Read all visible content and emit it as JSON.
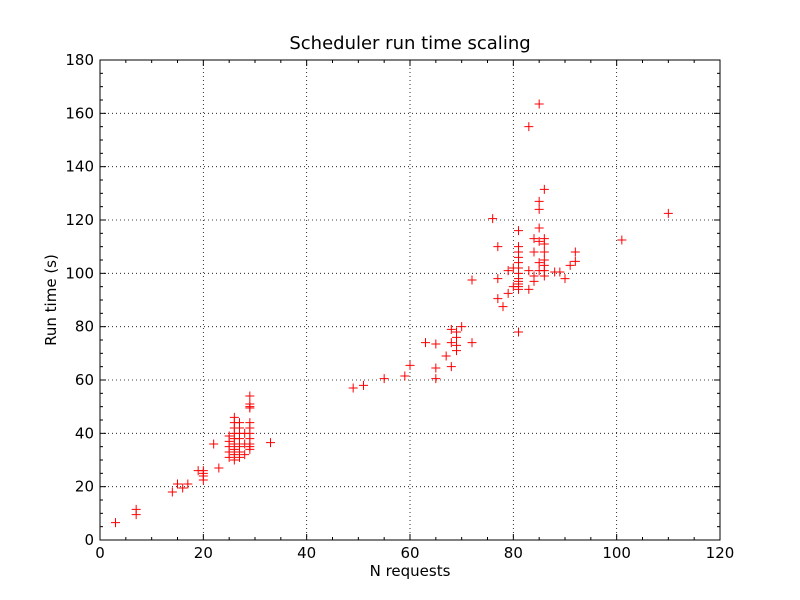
{
  "chart_data": {
    "type": "scatter",
    "title": "Scheduler run time scaling",
    "xlabel": "N requests",
    "ylabel": "Run time (s)",
    "xlim": [
      0,
      120
    ],
    "ylim": [
      0,
      180
    ],
    "xticks": [
      0,
      20,
      40,
      60,
      80,
      100,
      120
    ],
    "yticks": [
      0,
      20,
      40,
      60,
      80,
      100,
      120,
      140,
      160,
      180
    ],
    "grid": true,
    "marker": "+",
    "marker_color": "#ff0000",
    "series": [
      {
        "points": [
          [
            3,
            6.5
          ],
          [
            7,
            9.5
          ],
          [
            7,
            11.5
          ],
          [
            14,
            18
          ],
          [
            15,
            21
          ],
          [
            16,
            19.5
          ],
          [
            17,
            21
          ],
          [
            19,
            26
          ],
          [
            20,
            22.5
          ],
          [
            20,
            24
          ],
          [
            20,
            25
          ],
          [
            20,
            26
          ],
          [
            22,
            36
          ],
          [
            23,
            27
          ],
          [
            25,
            31
          ],
          [
            25,
            33
          ],
          [
            25,
            35
          ],
          [
            25,
            37
          ],
          [
            25,
            39
          ],
          [
            26,
            30
          ],
          [
            26,
            32
          ],
          [
            26,
            34
          ],
          [
            26,
            36
          ],
          [
            26,
            38
          ],
          [
            26,
            40
          ],
          [
            26,
            42
          ],
          [
            26,
            44
          ],
          [
            26,
            46
          ],
          [
            27,
            31
          ],
          [
            27,
            33
          ],
          [
            27,
            35
          ],
          [
            27,
            38
          ],
          [
            27,
            40
          ],
          [
            27,
            42
          ],
          [
            27,
            44
          ],
          [
            28,
            32
          ],
          [
            28,
            36
          ],
          [
            28,
            40
          ],
          [
            29,
            34
          ],
          [
            29,
            35
          ],
          [
            29,
            36
          ],
          [
            29,
            38
          ],
          [
            29,
            40
          ],
          [
            29,
            42
          ],
          [
            29,
            44
          ],
          [
            29,
            49.5
          ],
          [
            29,
            50
          ],
          [
            29,
            51
          ],
          [
            29,
            54
          ],
          [
            33,
            36.5
          ],
          [
            49,
            57
          ],
          [
            51,
            58
          ],
          [
            55,
            60.5
          ],
          [
            59,
            61.5
          ],
          [
            60,
            65.5
          ],
          [
            63,
            74
          ],
          [
            65,
            60.5
          ],
          [
            65,
            64.5
          ],
          [
            65,
            73.5
          ],
          [
            67,
            69
          ],
          [
            68,
            65
          ],
          [
            68,
            74
          ],
          [
            68,
            79
          ],
          [
            69,
            71
          ],
          [
            69,
            73
          ],
          [
            69,
            76
          ],
          [
            69,
            78
          ],
          [
            70,
            80
          ],
          [
            72,
            74
          ],
          [
            72,
            97.5
          ],
          [
            76,
            120.5
          ],
          [
            77,
            90.5
          ],
          [
            77,
            98
          ],
          [
            77,
            110
          ],
          [
            78,
            87.5
          ],
          [
            79,
            92.5
          ],
          [
            79,
            101
          ],
          [
            80,
            95
          ],
          [
            80,
            102
          ],
          [
            81,
            78
          ],
          [
            81,
            94
          ],
          [
            81,
            95
          ],
          [
            81,
            96
          ],
          [
            81,
            97
          ],
          [
            81,
            98
          ],
          [
            81,
            100
          ],
          [
            81,
            102
          ],
          [
            81,
            104
          ],
          [
            81,
            106
          ],
          [
            81,
            108
          ],
          [
            81,
            110
          ],
          [
            81,
            116
          ],
          [
            83,
            94
          ],
          [
            83,
            155
          ],
          [
            83,
            101
          ],
          [
            84,
            97
          ],
          [
            84,
            99
          ],
          [
            84,
            108
          ],
          [
            84,
            113
          ],
          [
            85,
            101
          ],
          [
            85,
            104
          ],
          [
            85,
            112
          ],
          [
            85,
            117
          ],
          [
            85,
            124
          ],
          [
            85,
            127
          ],
          [
            85,
            163.5
          ],
          [
            86,
            99
          ],
          [
            86,
            101
          ],
          [
            86,
            103
          ],
          [
            86,
            105
          ],
          [
            86,
            108
          ],
          [
            86,
            111
          ],
          [
            86,
            113
          ],
          [
            86,
            131.5
          ],
          [
            88,
            100.5
          ],
          [
            89,
            100.5
          ],
          [
            90,
            98
          ],
          [
            91,
            103
          ],
          [
            92,
            104.5
          ],
          [
            92,
            108
          ],
          [
            101,
            112.5
          ],
          [
            110,
            122.5
          ]
        ]
      }
    ]
  }
}
